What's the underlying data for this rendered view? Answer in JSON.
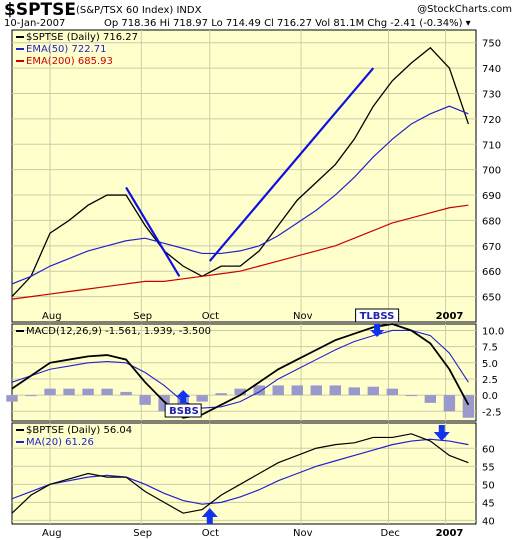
{
  "header": {
    "symbol": "$SPTSE",
    "symbol_name": "(S&P/TSX 60 Index) INDX",
    "watermark": "@StockCharts.com",
    "date": "10-Jan-2007",
    "stats": "Op 718.36  Hi 718.97  Lo 714.49  Cl 716.27  Vol 81.1M  Chg -2.41 (-0.34%) ▾"
  },
  "colors": {
    "bg": "#FFFFCC",
    "price": "#000000",
    "ema50": "#2222CC",
    "ema200": "#CC0000",
    "trend": "#1111DD",
    "hist": "#9999CC",
    "arrow": "#1133EE",
    "grid": "#CCCCAA"
  },
  "chart_data": [
    {
      "type": "line",
      "panel": "price",
      "legend": [
        {
          "label": "$SPTSE (Daily) 716.27",
          "color": "#000000"
        },
        {
          "label": "EMA(50) 722.71",
          "color": "#2222CC"
        },
        {
          "label": "EMA(200) 685.93",
          "color": "#CC0000"
        }
      ],
      "x_ticks": [
        "Aug",
        "Sep",
        "Oct",
        "Nov",
        "Dec",
        "2007"
      ],
      "ylim": [
        640,
        755
      ],
      "y_ticks": [
        650,
        660,
        670,
        680,
        690,
        700,
        710,
        720,
        730,
        740,
        750
      ],
      "x": [
        0,
        5,
        10,
        15,
        20,
        25,
        30,
        35,
        40,
        45,
        50,
        55,
        60,
        65,
        70,
        75,
        80,
        85,
        90,
        95,
        100,
        105,
        110,
        115,
        120
      ],
      "series": [
        {
          "values": [
            650,
            658,
            675,
            680,
            686,
            690,
            690,
            678,
            668,
            662,
            658,
            662,
            662,
            668,
            678,
            688,
            695,
            702,
            712,
            725,
            735,
            742,
            748,
            740,
            718
          ]
        },
        {
          "values": [
            655,
            658,
            662,
            665,
            668,
            670,
            672,
            673,
            671,
            669,
            667,
            667,
            668,
            670,
            674,
            679,
            684,
            690,
            697,
            705,
            712,
            718,
            722,
            725,
            722
          ]
        },
        {
          "values": [
            649,
            650,
            651,
            652,
            653,
            654,
            655,
            656,
            656,
            657,
            658,
            659,
            660,
            662,
            664,
            666,
            668,
            670,
            673,
            676,
            679,
            681,
            683,
            685,
            686
          ]
        }
      ],
      "trend_lines": [
        {
          "from": [
            30,
            693
          ],
          "to": [
            44,
            658
          ]
        },
        {
          "from": [
            52,
            664
          ],
          "to": [
            95,
            740
          ]
        }
      ]
    },
    {
      "type": "bar",
      "panel": "macd",
      "legend": [
        {
          "label": "MACD(12,26,9) -1.561, 1.939, -3.500",
          "color": "#000000"
        }
      ],
      "ylim": [
        -4,
        11
      ],
      "y_ticks": [
        -2.5,
        0.0,
        2.5,
        5.0,
        7.5,
        10.0
      ],
      "x": [
        0,
        5,
        10,
        15,
        20,
        25,
        30,
        35,
        40,
        45,
        50,
        55,
        60,
        65,
        70,
        75,
        80,
        85,
        90,
        95,
        100,
        105,
        110,
        115,
        120
      ],
      "macd": [
        1,
        3,
        5,
        5.5,
        6,
        6.2,
        5.5,
        2,
        -1,
        -3.5,
        -3,
        -1.5,
        0,
        2,
        4,
        5.5,
        7,
        8.5,
        9.5,
        10.5,
        11,
        10,
        8,
        4,
        -1.5
      ],
      "signal": [
        2,
        3,
        4,
        4.5,
        5,
        5.2,
        5,
        3.5,
        1.5,
        -1,
        -2,
        -1.8,
        -1,
        0.5,
        2.5,
        4,
        5.5,
        7,
        8.3,
        9.2,
        10,
        10,
        9.2,
        6.5,
        2
      ],
      "histogram": [
        -1,
        0,
        1,
        1,
        1,
        1,
        0.5,
        -1.5,
        -2.5,
        -2.5,
        -1,
        0.3,
        1,
        1.5,
        1.5,
        1.5,
        1.5,
        1.5,
        1.2,
        1.3,
        1,
        0,
        -1.2,
        -2.5,
        -3.5
      ],
      "annotations": [
        {
          "text": "BSBS",
          "x": 45
        },
        {
          "text": "TLBSS",
          "x": 96
        }
      ]
    },
    {
      "type": "line",
      "panel": "bpi",
      "legend": [
        {
          "label": "$BPTSE (Daily) 56.04",
          "color": "#000000"
        },
        {
          "label": "MA(20) 61.26",
          "color": "#2222CC"
        }
      ],
      "x_ticks": [
        "Aug",
        "Sep",
        "Oct",
        "Nov",
        "Dec",
        "2007"
      ],
      "ylim": [
        39,
        67
      ],
      "y_ticks": [
        40,
        45,
        50,
        55,
        60
      ],
      "x": [
        0,
        5,
        10,
        15,
        20,
        25,
        30,
        35,
        40,
        45,
        50,
        55,
        60,
        65,
        70,
        75,
        80,
        85,
        90,
        95,
        100,
        105,
        110,
        115,
        120
      ],
      "series": [
        {
          "values": [
            42,
            47,
            50,
            51.5,
            53,
            52,
            52,
            48,
            45,
            42,
            43,
            47,
            50,
            53,
            56,
            58,
            60,
            61,
            61.5,
            63,
            63,
            64,
            62,
            58,
            56
          ]
        },
        {
          "values": [
            46,
            48,
            50,
            51,
            52,
            52.5,
            52,
            50,
            47.5,
            45.5,
            44.5,
            45,
            46.5,
            48.5,
            51,
            53,
            55,
            56.5,
            58,
            59.5,
            61,
            62,
            62.5,
            62,
            61
          ]
        }
      ],
      "arrows": [
        {
          "x": 52,
          "direction": "up"
        },
        {
          "x": 113,
          "direction": "down"
        }
      ]
    }
  ]
}
